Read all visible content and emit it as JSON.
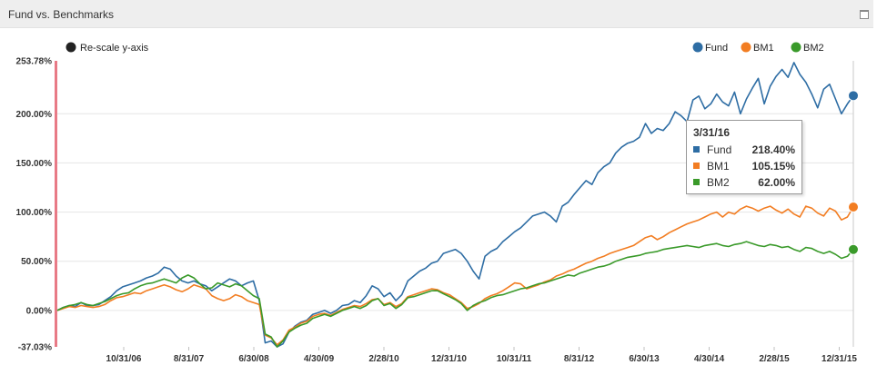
{
  "panel": {
    "title": "Fund vs. Benchmarks",
    "maximize_icon": "maximize-icon",
    "rescale_label": "Re-scale y-axis"
  },
  "colors": {
    "fund": "#2e6da4",
    "bm1": "#f27d22",
    "bm2": "#3a9a2a",
    "axis_left": "#e87a86",
    "grid": "#e6e6e6"
  },
  "tooltip": {
    "date": "3/31/16",
    "rows": [
      {
        "name": "Fund",
        "value": "218.40%"
      },
      {
        "name": "BM1",
        "value": "105.15%"
      },
      {
        "name": "BM2",
        "value": "62.00%"
      }
    ]
  },
  "chart_data": {
    "type": "line",
    "ylim": [
      -37.03,
      253.78
    ],
    "y_ticks": [
      {
        "label": "253.78%",
        "value": 253.78
      },
      {
        "label": "200.00%",
        "value": 200
      },
      {
        "label": "150.00%",
        "value": 150
      },
      {
        "label": "100.00%",
        "value": 100
      },
      {
        "label": "50.00%",
        "value": 50
      },
      {
        "label": "0.00%",
        "value": 0
      },
      {
        "label": "-37.03%",
        "value": -37.03
      }
    ],
    "x_ticks": [
      "10/31/06",
      "8/31/07",
      "6/30/08",
      "4/30/09",
      "2/28/10",
      "12/31/10",
      "10/31/11",
      "8/31/12",
      "6/30/13",
      "4/30/14",
      "2/28/15",
      "12/31/15"
    ],
    "legend_position": "top-right",
    "series": [
      {
        "name": "Fund",
        "values": [
          0,
          3,
          5,
          4,
          8,
          5,
          5,
          6,
          10,
          14,
          20,
          24,
          26,
          28,
          30,
          33,
          35,
          38,
          44,
          42,
          35,
          30,
          28,
          30,
          27,
          25,
          20,
          24,
          28,
          32,
          30,
          25,
          28,
          30,
          10,
          -33,
          -31,
          -37,
          -34,
          -22,
          -16,
          -12,
          -10,
          -4,
          -2,
          0,
          -3,
          0,
          5,
          6,
          10,
          8,
          15,
          25,
          22,
          14,
          18,
          10,
          16,
          30,
          35,
          40,
          43,
          48,
          50,
          58,
          60,
          62,
          58,
          50,
          40,
          32,
          55,
          60,
          63,
          70,
          75,
          80,
          84,
          90,
          96,
          98,
          100,
          96,
          90,
          106,
          110,
          118,
          125,
          132,
          128,
          140,
          146,
          150,
          160,
          166,
          170,
          172,
          176,
          190,
          180,
          185,
          183,
          190,
          202,
          198,
          192,
          214,
          218,
          205,
          210,
          220,
          212,
          208,
          222,
          200,
          215,
          226,
          236,
          210,
          228,
          238,
          245,
          237,
          252,
          240,
          232,
          220,
          206,
          225,
          230,
          215,
          200,
          210,
          218.4
        ]
      },
      {
        "name": "BM1",
        "values": [
          0,
          2,
          4,
          3,
          5,
          4,
          3,
          4,
          6,
          10,
          13,
          14,
          16,
          18,
          17,
          20,
          22,
          24,
          26,
          24,
          21,
          19,
          22,
          26,
          24,
          22,
          15,
          12,
          10,
          12,
          16,
          14,
          10,
          8,
          6,
          -25,
          -28,
          -35,
          -30,
          -20,
          -17,
          -13,
          -11,
          -6,
          -4,
          -3,
          -5,
          -2,
          1,
          3,
          5,
          4,
          7,
          11,
          12,
          6,
          8,
          4,
          7,
          14,
          16,
          18,
          20,
          22,
          21,
          18,
          16,
          12,
          8,
          2,
          4,
          7,
          12,
          15,
          17,
          20,
          24,
          28,
          27,
          22,
          24,
          26,
          29,
          31,
          35,
          37,
          40,
          42,
          45,
          48,
          50,
          53,
          55,
          58,
          60,
          62,
          64,
          66,
          70,
          74,
          76,
          72,
          75,
          79,
          82,
          85,
          88,
          90,
          92,
          95,
          98,
          100,
          95,
          100,
          98,
          103,
          106,
          104,
          101,
          104,
          106,
          102,
          99,
          103,
          98,
          95,
          106,
          104,
          99,
          96,
          104,
          101,
          92,
          95,
          105.15
        ]
      },
      {
        "name": "BM2",
        "values": [
          0,
          3,
          5,
          6,
          8,
          6,
          5,
          7,
          9,
          12,
          15,
          17,
          18,
          22,
          25,
          27,
          28,
          30,
          32,
          30,
          28,
          33,
          36,
          33,
          27,
          22,
          23,
          28,
          26,
          24,
          27,
          25,
          20,
          15,
          12,
          -24,
          -27,
          -37,
          -31,
          -22,
          -18,
          -15,
          -13,
          -8,
          -6,
          -4,
          -6,
          -3,
          0,
          2,
          4,
          2,
          5,
          10,
          12,
          5,
          7,
          2,
          6,
          13,
          14,
          16,
          18,
          20,
          20,
          17,
          14,
          11,
          7,
          0,
          5,
          8,
          10,
          13,
          15,
          16,
          18,
          20,
          22,
          23,
          25,
          27,
          28,
          30,
          32,
          34,
          36,
          35,
          38,
          40,
          42,
          44,
          45,
          47,
          50,
          52,
          54,
          55,
          56,
          58,
          59,
          60,
          62,
          63,
          64,
          65,
          66,
          65,
          64,
          66,
          67,
          68,
          66,
          65,
          67,
          68,
          70,
          68,
          66,
          65,
          67,
          66,
          64,
          65,
          62,
          60,
          64,
          63,
          60,
          58,
          60,
          57,
          53,
          55,
          62
        ]
      }
    ]
  }
}
